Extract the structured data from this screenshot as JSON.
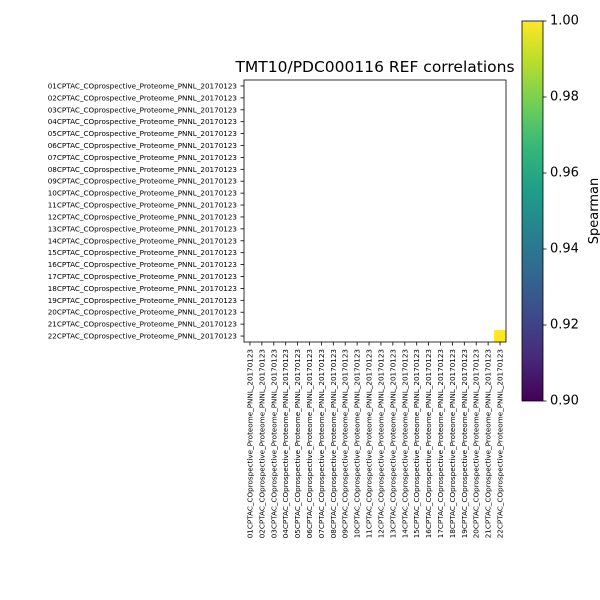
{
  "chart_data": {
    "type": "heatmap",
    "title": "TMT10/PDC000116 REF correlations",
    "row_labels": [
      "01CPTAC_COprospective_Proteome_PNNL_20170123",
      "02CPTAC_COprospective_Proteome_PNNL_20170123",
      "03CPTAC_COprospective_Proteome_PNNL_20170123",
      "04CPTAC_COprospective_Proteome_PNNL_20170123",
      "05CPTAC_COprospective_Proteome_PNNL_20170123",
      "06CPTAC_COprospective_Proteome_PNNL_20170123",
      "07CPTAC_COprospective_Proteome_PNNL_20170123",
      "08CPTAC_COprospective_Proteome_PNNL_20170123",
      "09CPTAC_COprospective_Proteome_PNNL_20170123",
      "10CPTAC_COprospective_Proteome_PNNL_20170123",
      "11CPTAC_COprospective_Proteome_PNNL_20170123",
      "12CPTAC_COprospective_Proteome_PNNL_20170123",
      "13CPTAC_COprospective_Proteome_PNNL_20170123",
      "14CPTAC_COprospective_Proteome_PNNL_20170123",
      "15CPTAC_COprospective_Proteome_PNNL_20170123",
      "16CPTAC_COprospective_Proteome_PNNL_20170123",
      "17CPTAC_COprospective_Proteome_PNNL_20170123",
      "18CPTAC_COprospective_Proteome_PNNL_20170123",
      "19CPTAC_COprospective_Proteome_PNNL_20170123",
      "20CPTAC_COprospective_Proteome_PNNL_20170123",
      "21CPTAC_COprospective_Proteome_PNNL_20170123",
      "22CPTAC_COprospective_Proteome_PNNL_20170123"
    ],
    "col_labels": [
      "01CPTAC_COprospective_Proteome_PNNL_20170123",
      "02CPTAC_COprospective_Proteome_PNNL_20170123",
      "03CPTAC_COprospective_Proteome_PNNL_20170123",
      "04CPTAC_COprospective_Proteome_PNNL_20170123",
      "05CPTAC_COprospective_Proteome_PNNL_20170123",
      "06CPTAC_COprospective_Proteome_PNNL_20170123",
      "07CPTAC_COprospective_Proteome_PNNL_20170123",
      "08CPTAC_COprospective_Proteome_PNNL_20170123",
      "09CPTAC_COprospective_Proteome_PNNL_20170123",
      "10CPTAC_COprospective_Proteome_PNNL_20170123",
      "11CPTAC_COprospective_Proteome_PNNL_20170123",
      "12CPTAC_COprospective_Proteome_PNNL_20170123",
      "13CPTAC_COprospective_Proteome_PNNL_20170123",
      "14CPTAC_COprospective_Proteome_PNNL_20170123",
      "15CPTAC_COprospective_Proteome_PNNL_20170123",
      "16CPTAC_COprospective_Proteome_PNNL_20170123",
      "17CPTAC_COprospective_Proteome_PNNL_20170123",
      "18CPTAC_COprospective_Proteome_PNNL_20170123",
      "19CPTAC_COprospective_Proteome_PNNL_20170123",
      "20CPTAC_COprospective_Proteome_PNNL_20170123",
      "21CPTAC_COprospective_Proteome_PNNL_20170123",
      "22CPTAC_COprospective_Proteome_PNNL_20170123"
    ],
    "cells": [
      {
        "row": 21,
        "col": 21,
        "value": 1.0
      }
    ],
    "colorbar": {
      "label": "Spearman",
      "range": [
        0.9,
        1.0
      ],
      "ticks": [
        "0.90",
        "0.92",
        "0.94",
        "0.96",
        "0.98",
        "1.00"
      ],
      "colormap": "viridis"
    }
  },
  "colors": {
    "viridis": [
      "#440154",
      "#482878",
      "#3e4989",
      "#31688e",
      "#26828e",
      "#1f9e89",
      "#35b779",
      "#6ece58",
      "#b5de2b",
      "#fde725"
    ]
  }
}
